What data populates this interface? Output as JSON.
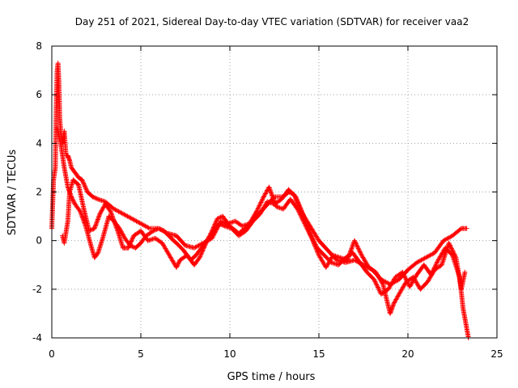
{
  "chart_data": {
    "type": "scatter",
    "title": "Day 251 of 2021, Sidereal Day-to-day VTEC variation (SDTVAR) for receiver vaa2",
    "xlabel": "GPS time / hours",
    "ylabel": "SDTVAR / TECUs",
    "xlim": [
      0,
      25
    ],
    "ylim": [
      -4,
      8
    ],
    "xticks": [
      "0",
      "5",
      "10",
      "15",
      "20",
      "25"
    ],
    "yticks": [
      "-4",
      "-2",
      "0",
      "2",
      "4",
      "6",
      "8"
    ],
    "grid": true,
    "marker": "+",
    "series": [
      {
        "name": "SDTVAR",
        "color": "#ff0000",
        "tracks": [
          [
            [
              0.0,
              0.5
            ],
            [
              0.1,
              2.5
            ],
            [
              0.2,
              3.0
            ],
            [
              0.25,
              5.5
            ],
            [
              0.3,
              7.0
            ],
            [
              0.35,
              7.3
            ],
            [
              0.4,
              6.5
            ],
            [
              0.45,
              5.0
            ],
            [
              0.5,
              4.5
            ],
            [
              0.6,
              4.0
            ],
            [
              0.7,
              4.5
            ],
            [
              0.8,
              3.5
            ],
            [
              0.9,
              3.5
            ],
            [
              1.0,
              3.3
            ],
            [
              1.1,
              3.0
            ],
            [
              1.3,
              2.8
            ],
            [
              1.5,
              2.6
            ],
            [
              1.7,
              2.5
            ],
            [
              2.0,
              2.0
            ],
            [
              2.3,
              1.8
            ],
            [
              2.6,
              1.7
            ],
            [
              3.0,
              1.6
            ],
            [
              3.5,
              1.3
            ],
            [
              4.0,
              1.1
            ],
            [
              4.5,
              0.9
            ],
            [
              5.0,
              0.7
            ],
            [
              5.5,
              0.5
            ],
            [
              6.0,
              0.5
            ],
            [
              6.5,
              0.3
            ],
            [
              7.0,
              0.2
            ],
            [
              7.5,
              -0.2
            ],
            [
              8.0,
              -0.3
            ],
            [
              8.5,
              -0.1
            ],
            [
              9.0,
              0.1
            ],
            [
              9.5,
              0.8
            ],
            [
              10.0,
              0.6
            ],
            [
              10.5,
              0.3
            ],
            [
              11.0,
              0.6
            ],
            [
              11.5,
              1.0
            ],
            [
              12.0,
              1.4
            ],
            [
              12.5,
              1.8
            ],
            [
              13.0,
              1.8
            ],
            [
              13.3,
              2.0
            ],
            [
              13.6,
              1.9
            ],
            [
              14.0,
              1.2
            ],
            [
              14.5,
              0.6
            ],
            [
              15.0,
              0.0
            ],
            [
              15.5,
              -0.4
            ],
            [
              16.0,
              -0.8
            ],
            [
              16.5,
              -0.9
            ],
            [
              17.0,
              -0.8
            ],
            [
              17.5,
              -1.0
            ],
            [
              18.0,
              -1.2
            ],
            [
              18.5,
              -1.6
            ],
            [
              19.0,
              -1.8
            ],
            [
              19.5,
              -1.6
            ],
            [
              20.0,
              -1.2
            ],
            [
              20.5,
              -0.9
            ],
            [
              21.0,
              -0.7
            ],
            [
              21.5,
              -0.5
            ],
            [
              22.0,
              0.0
            ],
            [
              22.5,
              0.2
            ],
            [
              23.0,
              0.5
            ],
            [
              23.3,
              0.5
            ]
          ],
          [
            [
              0.3,
              4.6
            ],
            [
              0.5,
              4.0
            ],
            [
              0.7,
              3.0
            ],
            [
              0.9,
              2.2
            ],
            [
              1.1,
              1.8
            ],
            [
              1.3,
              1.5
            ],
            [
              1.6,
              1.2
            ],
            [
              1.9,
              0.6
            ],
            [
              2.2,
              -0.2
            ],
            [
              2.4,
              -0.7
            ],
            [
              2.6,
              -0.5
            ],
            [
              2.9,
              0.2
            ],
            [
              3.2,
              1.0
            ],
            [
              3.5,
              0.8
            ],
            [
              3.8,
              0.5
            ],
            [
              4.1,
              0.1
            ],
            [
              4.4,
              -0.2
            ],
            [
              4.7,
              -0.3
            ],
            [
              5.0,
              -0.1
            ],
            [
              5.3,
              0.2
            ],
            [
              5.7,
              0.4
            ],
            [
              6.0,
              0.5
            ],
            [
              6.3,
              0.4
            ],
            [
              6.7,
              0.1
            ],
            [
              7.0,
              -0.1
            ],
            [
              7.4,
              -0.4
            ],
            [
              7.8,
              -0.8
            ],
            [
              8.1,
              -0.6
            ],
            [
              8.4,
              -0.3
            ],
            [
              8.7,
              0.0
            ],
            [
              9.0,
              0.3
            ],
            [
              9.4,
              0.7
            ],
            [
              9.7,
              0.6
            ],
            [
              10.1,
              0.5
            ],
            [
              10.5,
              0.2
            ],
            [
              10.9,
              0.4
            ],
            [
              11.3,
              0.8
            ],
            [
              11.7,
              1.1
            ],
            [
              12.1,
              1.6
            ],
            [
              12.5,
              1.5
            ],
            [
              12.9,
              1.7
            ],
            [
              13.3,
              2.1
            ],
            [
              13.7,
              1.8
            ],
            [
              14.1,
              1.1
            ],
            [
              14.5,
              0.3
            ],
            [
              14.9,
              -0.3
            ],
            [
              15.3,
              -0.6
            ],
            [
              15.7,
              -0.9
            ],
            [
              16.1,
              -1.0
            ],
            [
              16.5,
              -0.7
            ],
            [
              16.9,
              -0.5
            ],
            [
              17.3,
              -0.9
            ],
            [
              17.7,
              -1.3
            ],
            [
              18.1,
              -1.6
            ],
            [
              18.5,
              -2.2
            ],
            [
              18.9,
              -2.0
            ],
            [
              19.3,
              -1.5
            ],
            [
              19.7,
              -1.3
            ],
            [
              20.1,
              -1.9
            ],
            [
              20.5,
              -1.4
            ],
            [
              20.9,
              -1.0
            ],
            [
              21.3,
              -1.4
            ],
            [
              21.7,
              -0.8
            ],
            [
              22.1,
              -0.3
            ],
            [
              22.5,
              -0.6
            ],
            [
              22.9,
              -1.5
            ],
            [
              23.1,
              -2.8
            ],
            [
              23.3,
              -3.6
            ],
            [
              23.4,
              -4.0
            ]
          ],
          [
            [
              0.6,
              0.2
            ],
            [
              0.7,
              -0.1
            ],
            [
              0.9,
              0.8
            ],
            [
              1.0,
              2.0
            ],
            [
              1.2,
              2.5
            ],
            [
              1.5,
              2.3
            ],
            [
              1.8,
              1.3
            ],
            [
              2.1,
              0.4
            ],
            [
              2.4,
              0.5
            ],
            [
              2.7,
              1.1
            ],
            [
              3.0,
              1.5
            ],
            [
              3.3,
              1.2
            ],
            [
              3.7,
              0.4
            ],
            [
              4.0,
              -0.3
            ],
            [
              4.3,
              -0.3
            ],
            [
              4.6,
              0.2
            ],
            [
              5.0,
              0.4
            ],
            [
              5.4,
              0.0
            ],
            [
              5.8,
              0.1
            ],
            [
              6.2,
              -0.1
            ],
            [
              6.6,
              -0.6
            ],
            [
              7.0,
              -1.1
            ],
            [
              7.2,
              -0.8
            ],
            [
              7.6,
              -0.6
            ],
            [
              8.0,
              -1.0
            ],
            [
              8.3,
              -0.7
            ],
            [
              8.6,
              -0.2
            ],
            [
              9.0,
              0.4
            ],
            [
              9.3,
              0.9
            ],
            [
              9.6,
              1.0
            ],
            [
              9.9,
              0.7
            ],
            [
              10.3,
              0.8
            ],
            [
              10.7,
              0.6
            ],
            [
              11.1,
              0.7
            ],
            [
              11.5,
              1.2
            ],
            [
              11.9,
              1.8
            ],
            [
              12.2,
              2.2
            ],
            [
              12.6,
              1.4
            ],
            [
              13.0,
              1.3
            ],
            [
              13.4,
              1.7
            ],
            [
              13.8,
              1.3
            ],
            [
              14.2,
              0.7
            ],
            [
              14.6,
              0.1
            ],
            [
              15.0,
              -0.6
            ],
            [
              15.4,
              -1.1
            ],
            [
              15.8,
              -0.6
            ],
            [
              16.2,
              -0.7
            ],
            [
              16.6,
              -0.8
            ],
            [
              17.0,
              0.0
            ],
            [
              17.4,
              -0.6
            ],
            [
              17.8,
              -1.1
            ],
            [
              18.2,
              -1.3
            ],
            [
              18.6,
              -1.8
            ],
            [
              19.0,
              -3.0
            ],
            [
              19.2,
              -2.6
            ],
            [
              19.5,
              -2.2
            ],
            [
              19.9,
              -1.7
            ],
            [
              20.3,
              -1.5
            ],
            [
              20.7,
              -2.0
            ],
            [
              21.1,
              -1.7
            ],
            [
              21.5,
              -1.2
            ],
            [
              21.9,
              -1.0
            ],
            [
              22.3,
              -0.1
            ],
            [
              22.7,
              -0.7
            ],
            [
              23.0,
              -2.0
            ],
            [
              23.2,
              -1.3
            ]
          ]
        ]
      }
    ]
  }
}
